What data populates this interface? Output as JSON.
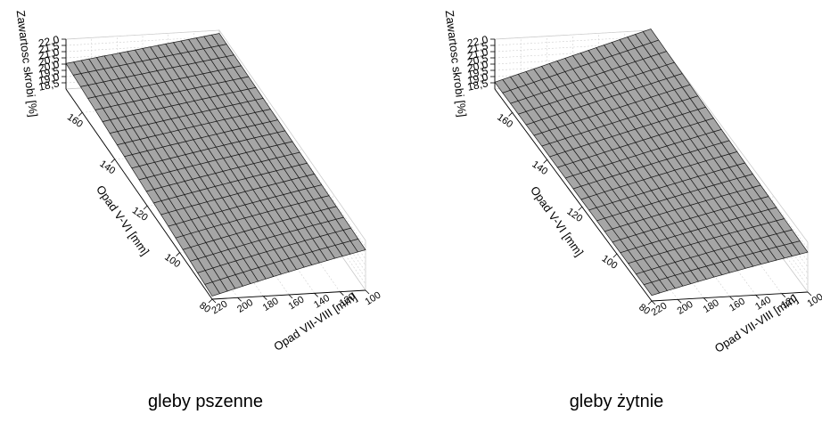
{
  "chart_data": [
    {
      "type": "surface3d",
      "caption": "gleby pszenne",
      "xlabel": "Opad VII-VIII [mm]",
      "ylabel": "Opad V-VI [mm]",
      "zlabel": "Zawartosc skrobi [%]",
      "xlim": [
        100,
        220
      ],
      "ylim": [
        80,
        170
      ],
      "zlim": [
        18.0,
        22.0
      ],
      "xticks": [
        "100",
        "120",
        "140",
        "160",
        "180",
        "200",
        "220"
      ],
      "yticks": [
        "80",
        "100",
        "120",
        "140",
        "160"
      ],
      "zticks": [
        "18,5",
        "19,0",
        "19,5",
        "20,0",
        "20,5",
        "21,0",
        "21,5",
        "22,0"
      ],
      "corners": {
        "x100_y80": 21.25,
        "x100_y170": 21.75,
        "x220_y80": 18.25,
        "x220_y170": 20.05
      },
      "grid": true,
      "surface_color": "#a6a6a6"
    },
    {
      "type": "surface3d",
      "caption": "gleby żytnie",
      "xlabel": "Opad VII-VIII [mm]",
      "ylabel": "Opad V-VI [mm]",
      "zlabel": "Zawartosc skrobi [%]",
      "xlim": [
        100,
        220
      ],
      "ylim": [
        80,
        170
      ],
      "zlim": [
        18.0,
        22.0
      ],
      "xticks": [
        "100",
        "120",
        "140",
        "160",
        "180",
        "200",
        "220"
      ],
      "yticks": [
        "80",
        "100",
        "120",
        "140",
        "160"
      ],
      "zticks": [
        "18,5",
        "19,0",
        "19,5",
        "20,0",
        "20,5",
        "21,0",
        "21,5",
        "22,0"
      ],
      "corners": {
        "x100_y80": 21.2,
        "x100_y170": 22.1,
        "x220_y80": 18.45,
        "x220_y170": 18.55
      },
      "grid": true,
      "surface_color": "#a6a6a6"
    }
  ]
}
